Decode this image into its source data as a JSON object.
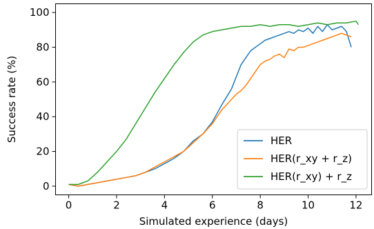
{
  "chart_data": {
    "type": "line",
    "title": "",
    "xlabel": "Simulated experience (days)",
    "ylabel": "Success rate (%)",
    "xlim": [
      -0.55,
      12.65
    ],
    "ylim": [
      -5,
      105
    ],
    "xticks": [
      0,
      2,
      4,
      6,
      8,
      10,
      12
    ],
    "yticks": [
      0,
      20,
      40,
      60,
      80,
      100
    ],
    "xtick_labels": [
      "0",
      "2",
      "4",
      "6",
      "8",
      "10",
      "12"
    ],
    "ytick_labels": [
      "0",
      "20",
      "40",
      "60",
      "80",
      "100"
    ],
    "grid": false,
    "legend_position": "lower-right",
    "series": [
      {
        "name": "HER",
        "color": "#1f77b4",
        "x": [
          0,
          0.4,
          0.8,
          1.2,
          1.6,
          2.0,
          2.4,
          2.8,
          3.2,
          3.6,
          4.0,
          4.4,
          4.8,
          5.2,
          5.6,
          6.0,
          6.4,
          6.8,
          7.0,
          7.2,
          7.4,
          7.6,
          7.8,
          8.0,
          8.2,
          8.4,
          8.6,
          8.8,
          9.0,
          9.2,
          9.4,
          9.6,
          9.8,
          10.0,
          10.2,
          10.4,
          10.6,
          10.8,
          11.0,
          11.2,
          11.4,
          11.6,
          11.8
        ],
        "y": [
          1,
          0,
          1,
          2,
          3,
          4,
          5,
          6,
          8,
          10,
          13,
          16,
          20,
          26,
          30,
          37,
          47,
          56,
          63,
          70,
          74,
          78,
          80,
          82,
          84,
          85,
          86,
          87,
          88,
          89,
          88,
          90,
          89,
          91,
          88,
          92,
          89,
          93,
          90,
          91,
          92,
          89,
          80
        ]
      },
      {
        "name": "HER(r_xy + r_z)",
        "color": "#ff7f0e",
        "x": [
          0,
          0.4,
          0.8,
          1.2,
          1.6,
          2.0,
          2.4,
          2.8,
          3.2,
          3.6,
          4.0,
          4.4,
          4.8,
          5.2,
          5.6,
          6.0,
          6.4,
          6.8,
          7.0,
          7.2,
          7.4,
          7.6,
          7.8,
          8.0,
          8.2,
          8.4,
          8.6,
          8.8,
          9.0,
          9.2,
          9.4,
          9.6,
          9.8,
          10.0,
          10.2,
          10.4,
          10.6,
          10.8,
          11.0,
          11.2,
          11.4,
          11.6,
          11.8
        ],
        "y": [
          1,
          0,
          1,
          2,
          3,
          4,
          5,
          6,
          8,
          11,
          14,
          17,
          20,
          25,
          30,
          36,
          44,
          50,
          53,
          55,
          58,
          62,
          66,
          70,
          72,
          73,
          75,
          76,
          74,
          79,
          78,
          80,
          80,
          81,
          82,
          83,
          84,
          85,
          86,
          87,
          88,
          87,
          86
        ]
      },
      {
        "name": "HER(r_xy) + r_z",
        "color": "#2ca02c",
        "x": [
          0,
          0.4,
          0.8,
          1.2,
          1.6,
          2.0,
          2.4,
          2.8,
          3.2,
          3.6,
          4.0,
          4.4,
          4.8,
          5.2,
          5.6,
          6.0,
          6.4,
          6.8,
          7.2,
          7.6,
          8.0,
          8.4,
          8.8,
          9.2,
          9.6,
          10.0,
          10.4,
          10.8,
          11.2,
          11.6,
          12.0,
          12.1
        ],
        "y": [
          1,
          1,
          3,
          8,
          14,
          20,
          27,
          36,
          45,
          54,
          62,
          70,
          77,
          83,
          87,
          89,
          90,
          91,
          92,
          92,
          93,
          92,
          93,
          93,
          92,
          93,
          94,
          93,
          94,
          94,
          95,
          93
        ]
      }
    ]
  }
}
